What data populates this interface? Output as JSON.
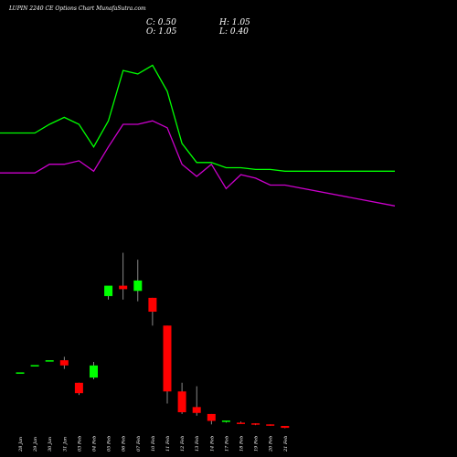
{
  "header": {
    "title": "LUPIN 2240 CE Options Chart MunafaSutra.com",
    "close_label": "C: 0.50",
    "open_label": "O: 1.05",
    "high_label": "H: 1.05",
    "low_label": "L: 0.40"
  },
  "colors": {
    "background": "#000000",
    "up": "#00ff00",
    "down": "#ff0000",
    "upper_line": "#00ff00",
    "lower_line": "#cc00cc",
    "text": "#ffffff"
  },
  "chart_data": {
    "type": "candlestick",
    "title": "LUPIN 2240 CE Options Chart MunafaSutra.com",
    "categories": [
      "28 Jan",
      "29 Jan",
      "30 Jan",
      "31 Jan",
      "03 Feb",
      "04 Feb",
      "05 Feb",
      "06 Feb",
      "07 Feb",
      "10 Feb",
      "11 Feb",
      "12 Feb",
      "13 Feb",
      "14 Feb",
      "17 Feb",
      "18 Feb",
      "19 Feb",
      "20 Feb",
      "21 Feb"
    ],
    "candles": [
      {
        "open": 16.5,
        "high": 16.5,
        "low": 16.5,
        "close": 16.5
      },
      {
        "open": 18.6,
        "high": 18.6,
        "low": 18.6,
        "close": 18.6
      },
      {
        "open": 20.0,
        "high": 20.0,
        "low": 20.0,
        "close": 20.0
      },
      {
        "open": 20.0,
        "high": 21.0,
        "low": 17.5,
        "close": 18.5
      },
      {
        "open": 13.5,
        "high": 13.5,
        "low": 10.0,
        "close": 10.5
      },
      {
        "open": 15.0,
        "high": 19.5,
        "low": 14.5,
        "close": 18.5
      },
      {
        "open": 38.5,
        "high": 41.0,
        "low": 37.5,
        "close": 41.5
      },
      {
        "open": 41.5,
        "high": 51.0,
        "low": 37.5,
        "close": 40.5
      },
      {
        "open": 40.0,
        "high": 49.0,
        "low": 37.0,
        "close": 43.0
      },
      {
        "open": 38.0,
        "high": 38.0,
        "low": 30.0,
        "close": 34.0
      },
      {
        "open": 30.0,
        "high": 30.0,
        "low": 7.5,
        "close": 11.0
      },
      {
        "open": 11.0,
        "high": 13.5,
        "low": 4.5,
        "close": 5.0
      },
      {
        "open": 6.5,
        "high": 12.5,
        "low": 4.0,
        "close": 4.8
      },
      {
        "open": 4.5,
        "high": 4.5,
        "low": 1.5,
        "close": 2.5
      },
      {
        "open": 2.2,
        "high": 2.5,
        "low": 2.0,
        "close": 2.6
      },
      {
        "open": 2.0,
        "high": 2.3,
        "low": 1.8,
        "close": 1.8
      },
      {
        "open": 1.8,
        "high": 1.8,
        "low": 1.3,
        "close": 1.5
      },
      {
        "open": 1.5,
        "high": 1.5,
        "low": 1.1,
        "close": 1.2
      },
      {
        "open": 1.05,
        "high": 1.05,
        "low": 0.4,
        "close": 0.5
      }
    ],
    "upper_line": [
      80,
      80,
      85,
      89,
      85,
      72,
      87,
      116,
      114,
      119,
      104,
      74,
      63,
      63,
      60,
      60,
      59,
      59,
      58
    ],
    "lower_line": [
      57,
      57,
      62,
      62,
      64,
      58,
      72,
      85,
      85,
      87,
      83,
      62,
      55,
      62,
      48,
      56,
      54,
      50,
      50
    ],
    "note_last_lower": 38
  }
}
